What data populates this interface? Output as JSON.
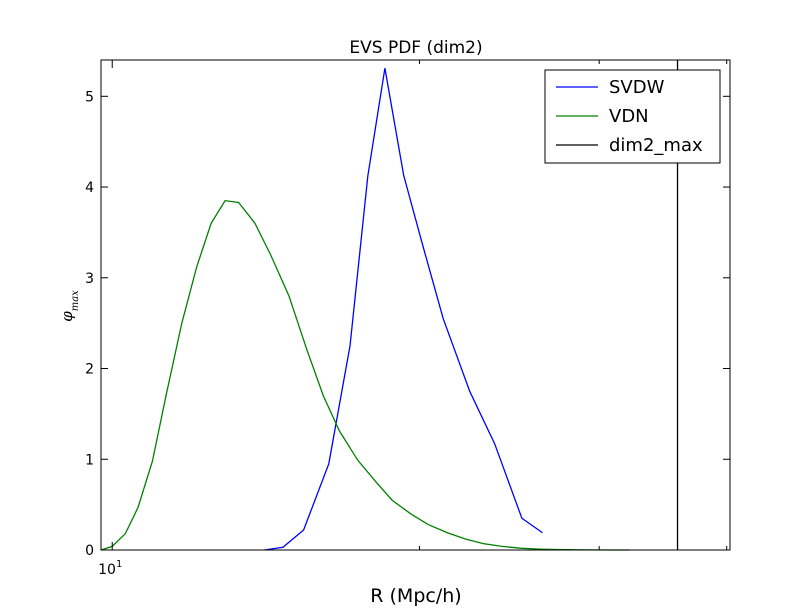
{
  "chart_data": {
    "type": "line",
    "title": "EVS PDF (dim2)",
    "xlabel": "R (Mpc/h)",
    "ylabel_base": "φ",
    "ylabel_sub": "max",
    "xscale": "log",
    "xlim": [
      9.75,
      40.3
    ],
    "ylim": [
      0,
      5.4
    ],
    "yticks": [
      0,
      1,
      2,
      3,
      4,
      5
    ],
    "xticks_major": [
      {
        "value": 10,
        "base": "10",
        "exp": "1"
      }
    ],
    "xticks_minor": [
      20,
      30,
      40
    ],
    "grid": false,
    "legend_position": "top-right",
    "series": [
      {
        "name": "SVDW",
        "color": "#0000ff",
        "x": [
          14.1,
          14.7,
          15.4,
          16.3,
          17.1,
          17.8,
          18.5,
          19.3,
          20.1,
          21.1,
          22.4,
          23.7,
          25.2,
          26.4
        ],
        "y": [
          0.0,
          0.03,
          0.22,
          0.95,
          2.25,
          4.12,
          5.31,
          4.13,
          3.4,
          2.55,
          1.75,
          1.17,
          0.35,
          0.19
        ]
      },
      {
        "name": "VDN",
        "color": "#008000",
        "x": [
          9.75,
          10.0,
          10.3,
          10.6,
          10.95,
          11.3,
          11.7,
          12.1,
          12.5,
          12.9,
          13.3,
          13.8,
          14.3,
          14.9,
          15.5,
          16.1,
          16.7,
          17.4,
          18.1,
          18.8,
          19.6,
          20.4,
          21.3,
          22.2,
          23.1,
          24.1,
          25.1,
          26.2,
          27.3,
          28.4,
          29.6,
          30.8,
          32.1
        ],
        "y": [
          0.0,
          0.04,
          0.18,
          0.47,
          0.98,
          1.72,
          2.5,
          3.12,
          3.6,
          3.85,
          3.83,
          3.6,
          3.25,
          2.8,
          2.22,
          1.7,
          1.31,
          0.99,
          0.76,
          0.55,
          0.4,
          0.28,
          0.19,
          0.12,
          0.07,
          0.04,
          0.02,
          0.01,
          0.005,
          0.002,
          0.001,
          0.0,
          0.0
        ]
      },
      {
        "name": "dim2_max",
        "color": "#000000",
        "vline_x": 35.8
      }
    ]
  }
}
